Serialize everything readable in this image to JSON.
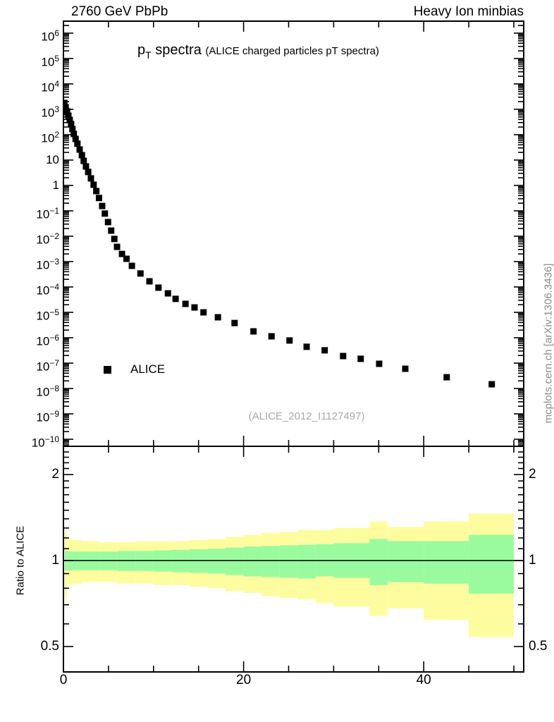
{
  "header": {
    "left": "2760 GeV PbPb",
    "right": "Heavy Ion minbias"
  },
  "title": {
    "symbol": "p",
    "subscript": "T",
    "text": " spectra",
    "annotation": "(ALICE charged particles pT spectra)"
  },
  "legend": {
    "entries": [
      {
        "label": "ALICE",
        "marker": "filled-square",
        "color": "#000000"
      }
    ]
  },
  "analysis_ref": "(ALICE_2012_I1127497)",
  "watermark": "mcplots.cern.ch [arXiv:1306.3436]",
  "colors": {
    "band_outer": "#fdfda0",
    "band_inner": "#9afb9e",
    "marker": "#000000",
    "axis": "#000000",
    "muted_text": "#8c8c8c"
  },
  "main_axis": {
    "x_major": [
      {
        "label": "0",
        "value": 0
      },
      {
        "label": "20",
        "value": 20
      },
      {
        "label": "40",
        "value": 40
      }
    ],
    "x_minor": [
      5,
      10,
      15,
      25,
      30,
      35,
      45,
      50
    ],
    "y_exponents": [
      6,
      5,
      4,
      3,
      2,
      1,
      0,
      -1,
      -2,
      -3,
      -4,
      -5,
      -6,
      -7,
      -8,
      -9,
      -10
    ]
  },
  "ratio_axis": {
    "label": "Ratio to ALICE",
    "y_major": [
      {
        "label": "2",
        "value": 2
      },
      {
        "label": "1",
        "value": 1
      },
      {
        "label": "0.5",
        "value": 0.5
      }
    ],
    "y_minor": [
      0.6,
      0.7,
      0.8,
      0.9,
      1.1,
      1.2,
      1.3,
      1.4,
      1.5,
      1.6,
      1.7,
      1.8,
      1.9,
      2.1,
      2.2,
      2.3,
      2.4
    ]
  },
  "chart_data": [
    {
      "type": "scatter",
      "title": "pT spectra (ALICE charged particles pT spectra)",
      "xlim": [
        0,
        51.1
      ],
      "ylog": true,
      "ylim": [
        5e-11,
        3000000.0
      ],
      "legend_position": "left-middle",
      "series": [
        {
          "name": "ALICE",
          "marker": "filled-square",
          "color": "#000000",
          "points": [
            [
              0.1,
              1780
            ],
            [
              0.25,
              1200
            ],
            [
              0.4,
              830
            ],
            [
              0.55,
              560
            ],
            [
              0.7,
              380
            ],
            [
              0.85,
              260
            ],
            [
              1.0,
              166
            ],
            [
              1.15,
              107
            ],
            [
              1.35,
              68
            ],
            [
              1.55,
              44
            ],
            [
              1.8,
              26
            ],
            [
              2.05,
              15.5
            ],
            [
              2.25,
              9.3
            ],
            [
              2.5,
              5.6
            ],
            [
              2.75,
              3.4
            ],
            [
              3.05,
              1.9
            ],
            [
              3.35,
              1.07
            ],
            [
              3.65,
              0.6
            ],
            [
              3.95,
              0.32
            ],
            [
              4.3,
              0.155
            ],
            [
              4.6,
              0.078
            ],
            [
              4.95,
              0.036
            ],
            [
              5.3,
              0.0166
            ],
            [
              5.65,
              0.0078
            ],
            [
              5.95,
              0.0038
            ],
            [
              6.5,
              0.002
            ],
            [
              7.0,
              0.00129
            ],
            [
              7.6,
              0.00068
            ],
            [
              8.55,
              0.00034
            ],
            [
              9.55,
              0.000167
            ],
            [
              10.55,
              9.4e-05
            ],
            [
              11.6,
              5.6e-05
            ],
            [
              12.45,
              3.4e-05
            ],
            [
              13.55,
              2.16e-05
            ],
            [
              14.55,
              1.56e-05
            ],
            [
              15.55,
              1e-05
            ],
            [
              17.15,
              6.4e-06
            ],
            [
              19.0,
              3.8e-06
            ],
            [
              21.1,
              1.78e-06
            ],
            [
              23.1,
              1.14e-06
            ],
            [
              25.1,
              7.8e-07
            ],
            [
              27.0,
              4.4e-07
            ],
            [
              29.0,
              3.2e-07
            ],
            [
              31.05,
              1.9e-07
            ],
            [
              33.0,
              1.48e-07
            ],
            [
              35.05,
              9.4e-08
            ],
            [
              37.95,
              6e-08
            ],
            [
              42.55,
              2.78e-08
            ],
            [
              47.55,
              1.47e-08
            ]
          ]
        }
      ]
    },
    {
      "type": "band-ratio",
      "ylabel": "Ratio to ALICE",
      "ylog": true,
      "ylim": [
        0.41,
        2.48
      ],
      "xlim": [
        0,
        51.1
      ],
      "reference_line": 1,
      "bins": [
        {
          "x": [
            0.15,
            0.4
          ],
          "outer": [
            0.73,
            1.27
          ],
          "inner": [
            0.92,
            1.08
          ]
        },
        {
          "x": [
            0.4,
            1.0
          ],
          "outer": [
            0.82,
            1.19
          ],
          "inner": [
            0.923,
            1.077
          ]
        },
        {
          "x": [
            1.0,
            2.0
          ],
          "outer": [
            0.83,
            1.18
          ],
          "inner": [
            0.925,
            1.075
          ]
        },
        {
          "x": [
            2.0,
            4.0
          ],
          "outer": [
            0.84,
            1.17
          ],
          "inner": [
            0.925,
            1.075
          ]
        },
        {
          "x": [
            4.0,
            6.0
          ],
          "outer": [
            0.84,
            1.16
          ],
          "inner": [
            0.925,
            1.075
          ]
        },
        {
          "x": [
            6.0,
            8.0
          ],
          "outer": [
            0.83,
            1.16
          ],
          "inner": [
            0.92,
            1.08
          ]
        },
        {
          "x": [
            8.0,
            10.0
          ],
          "outer": [
            0.83,
            1.17
          ],
          "inner": [
            0.92,
            1.08
          ]
        },
        {
          "x": [
            10,
            12
          ],
          "outer": [
            0.82,
            1.17
          ],
          "inner": [
            0.915,
            1.085
          ]
        },
        {
          "x": [
            12,
            14
          ],
          "outer": [
            0.82,
            1.17
          ],
          "inner": [
            0.91,
            1.09
          ]
        },
        {
          "x": [
            14,
            16
          ],
          "outer": [
            0.81,
            1.18
          ],
          "inner": [
            0.905,
            1.095
          ]
        },
        {
          "x": [
            16,
            18
          ],
          "outer": [
            0.8,
            1.19
          ],
          "inner": [
            0.9,
            1.1
          ]
        },
        {
          "x": [
            18,
            20
          ],
          "outer": [
            0.78,
            1.21
          ],
          "inner": [
            0.89,
            1.11
          ]
        },
        {
          "x": [
            20,
            22
          ],
          "outer": [
            0.77,
            1.23
          ],
          "inner": [
            0.88,
            1.12
          ]
        },
        {
          "x": [
            22,
            24
          ],
          "outer": [
            0.75,
            1.25
          ],
          "inner": [
            0.875,
            1.125
          ]
        },
        {
          "x": [
            24,
            26
          ],
          "outer": [
            0.74,
            1.26
          ],
          "inner": [
            0.87,
            1.13
          ]
        },
        {
          "x": [
            26,
            28
          ],
          "outer": [
            0.73,
            1.28
          ],
          "inner": [
            0.865,
            1.135
          ]
        },
        {
          "x": [
            28,
            30
          ],
          "outer": [
            0.71,
            1.28
          ],
          "inner": [
            0.88,
            1.14
          ]
        },
        {
          "x": [
            30,
            32
          ],
          "outer": [
            0.69,
            1.3
          ],
          "inner": [
            0.87,
            1.15
          ]
        },
        {
          "x": [
            32,
            34
          ],
          "outer": [
            0.69,
            1.3
          ],
          "inner": [
            0.87,
            1.15
          ]
        },
        {
          "x": [
            34,
            36
          ],
          "outer": [
            0.64,
            1.37
          ],
          "inner": [
            0.82,
            1.19
          ]
        },
        {
          "x": [
            36,
            40
          ],
          "outer": [
            0.68,
            1.31
          ],
          "inner": [
            0.84,
            1.17
          ]
        },
        {
          "x": [
            40,
            45
          ],
          "outer": [
            0.62,
            1.37
          ],
          "inner": [
            0.83,
            1.17
          ]
        },
        {
          "x": [
            45,
            50
          ],
          "outer": [
            0.54,
            1.46
          ],
          "inner": [
            0.766,
            1.23
          ]
        }
      ]
    }
  ]
}
